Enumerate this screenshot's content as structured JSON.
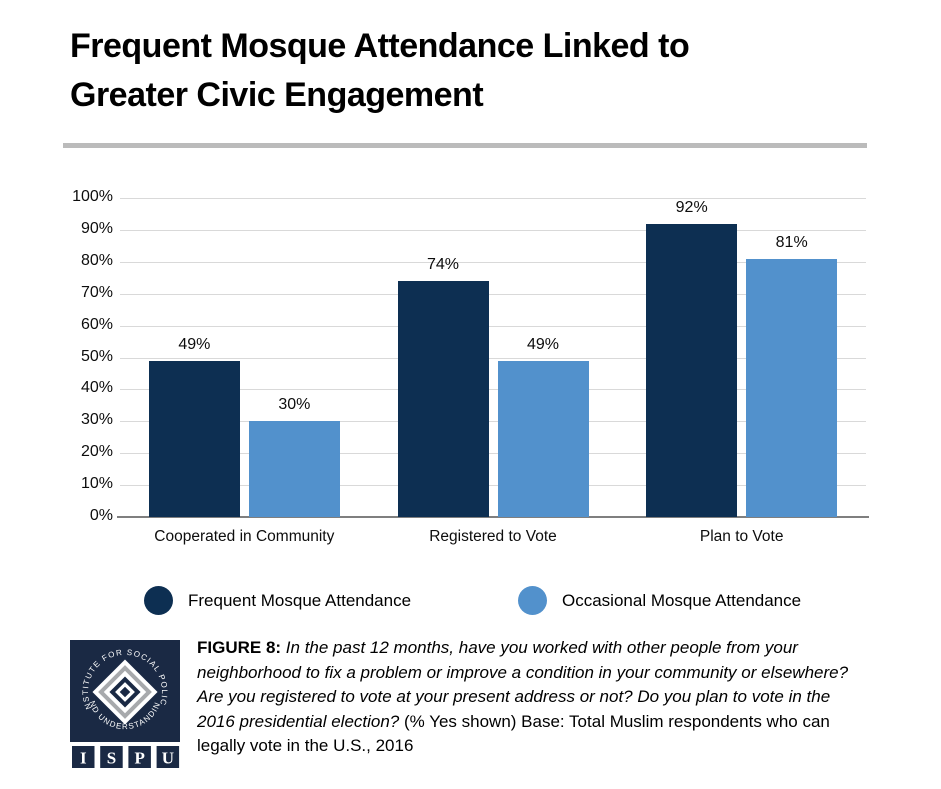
{
  "title": {
    "line1": "Frequent Mosque Attendance Linked to",
    "line2": "Greater Civic Engagement"
  },
  "chart_data": {
    "type": "bar",
    "title": "Frequent Mosque Attendance Linked to Greater Civic Engagement",
    "categories": [
      "Cooperated in Community",
      "Registered to Vote",
      "Plan to Vote"
    ],
    "series": [
      {
        "name": "Frequent Mosque Attendance",
        "color": "#0D2F52",
        "values": [
          49,
          74,
          92
        ]
      },
      {
        "name": "Occasional Mosque Attendance",
        "color": "#5291CC",
        "values": [
          30,
          49,
          81
        ]
      }
    ],
    "value_suffix": "%",
    "xlabel": "",
    "ylabel": "",
    "ylim": [
      0,
      100
    ],
    "ytick_step": 10,
    "ytick_suffix": "%",
    "grid": "horizontal",
    "legend_position": "bottom"
  },
  "caption": {
    "label": "FIGURE 8:",
    "question": "In the past 12 months, have you worked with other people from your neighborhood to fix a problem or improve a condition in your community or elsewhere? Are you registered to vote at your present address or not? Do you plan to vote in the 2016 presidential election?",
    "note": "(% Yes shown) Base: Total Muslim respondents who can legally vote in the U.S., 2016"
  },
  "logo": {
    "arc_top": "INSTITUTE FOR SOCIAL POLICY",
    "arc_bottom": "AND UNDERSTANDING",
    "letters": [
      "I",
      "S",
      "P",
      "U"
    ],
    "navy": "#1A2944"
  },
  "colors": {
    "divider": "#BBBBBB",
    "gridline": "#D9D9D9",
    "axis_line": "#7F7F7F",
    "text": "#000000"
  }
}
